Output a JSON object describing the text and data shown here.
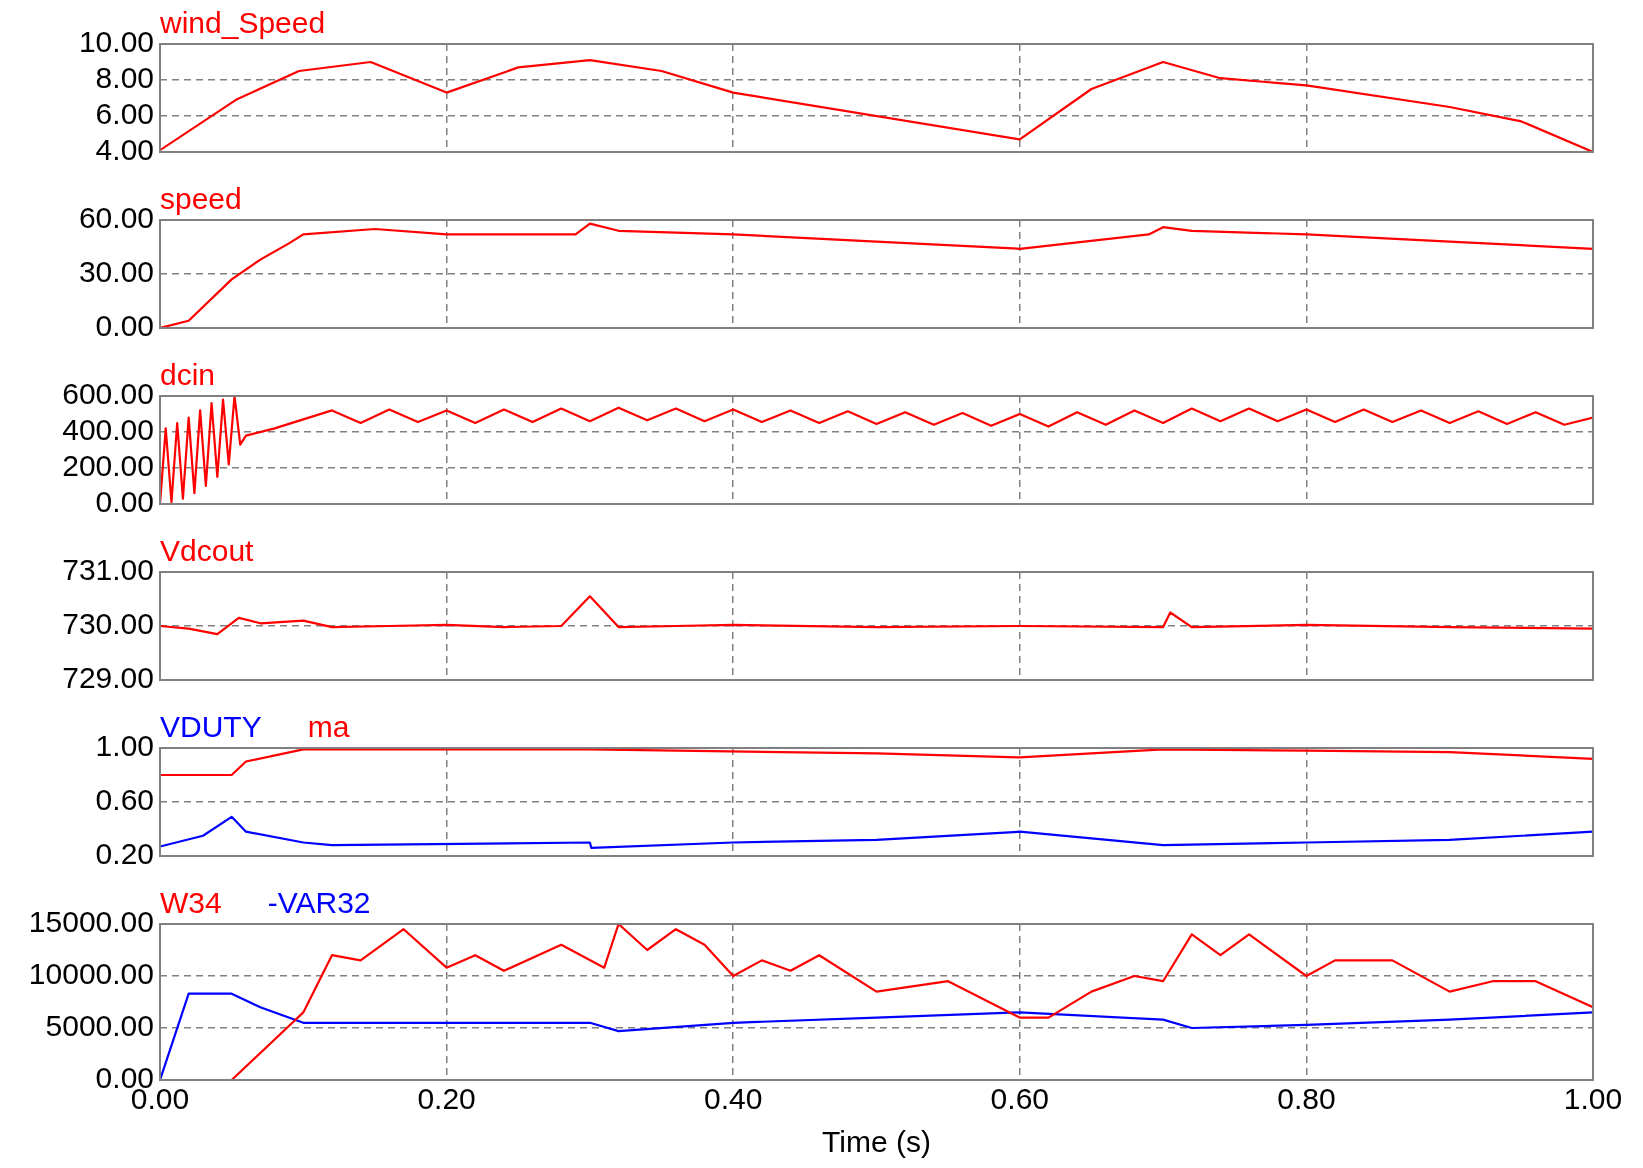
{
  "chart_data": [
    {
      "type": "line",
      "x": [
        0,
        0.053,
        0.097,
        0.147,
        0.2,
        0.25,
        0.3,
        0.35,
        0.4,
        0.6,
        0.65,
        0.7,
        0.74,
        0.8,
        0.9,
        0.95,
        1.0
      ],
      "series": [
        {
          "name": "wind_Speed",
          "color": "#ff0000",
          "values": [
            4.1,
            6.9,
            8.5,
            9.0,
            7.3,
            8.7,
            9.1,
            8.5,
            7.3,
            4.7,
            7.5,
            9.0,
            8.1,
            7.7,
            6.5,
            5.7,
            4.0
          ]
        }
      ],
      "xlim": [
        0,
        1
      ],
      "xticks": [
        0,
        0.2,
        0.4,
        0.6,
        0.8,
        1
      ],
      "ylim": [
        4,
        10
      ],
      "yticks": [
        {
          "value": 4,
          "label": "4.00"
        },
        {
          "value": 6,
          "label": "6.00"
        },
        {
          "value": 8,
          "label": "8.00"
        },
        {
          "value": 10,
          "label": "10.00"
        }
      ],
      "tick_labels": "y",
      "grid": true,
      "legend": "top left",
      "marker": "none",
      "line_style": "solid"
    },
    {
      "type": "line",
      "x": [
        0,
        0.02,
        0.05,
        0.07,
        0.09,
        0.1,
        0.15,
        0.2,
        0.29,
        0.3,
        0.32,
        0.4,
        0.5,
        0.6,
        0.69,
        0.7,
        0.72,
        0.8,
        0.9,
        1.0
      ],
      "series": [
        {
          "name": "speed",
          "color": "#ff0000",
          "values": [
            0,
            4,
            27,
            38,
            47,
            52,
            55,
            52,
            52,
            58,
            54,
            52,
            48,
            44,
            52,
            56,
            54,
            52,
            48,
            44
          ]
        }
      ],
      "xlim": [
        0,
        1
      ],
      "xticks": [
        0,
        0.2,
        0.4,
        0.6,
        0.8,
        1
      ],
      "ylim": [
        0,
        60
      ],
      "yticks": [
        {
          "value": 0,
          "label": "0.00"
        },
        {
          "value": 30,
          "label": "30.00"
        },
        {
          "value": 60,
          "label": "60.00"
        }
      ],
      "tick_labels": "y",
      "grid": true,
      "legend": "top left",
      "marker": "none",
      "line_style": "solid"
    },
    {
      "type": "line",
      "x": [
        0,
        0.004,
        0.008,
        0.012,
        0.016,
        0.02,
        0.024,
        0.028,
        0.032,
        0.036,
        0.04,
        0.044,
        0.048,
        0.052,
        0.056,
        0.06,
        0.08,
        0.1,
        0.12,
        0.14,
        0.16,
        0.18,
        0.2,
        0.22,
        0.24,
        0.26,
        0.28,
        0.3,
        0.32,
        0.34,
        0.36,
        0.38,
        0.4,
        0.42,
        0.44,
        0.46,
        0.48,
        0.5,
        0.52,
        0.54,
        0.56,
        0.58,
        0.6,
        0.62,
        0.64,
        0.66,
        0.68,
        0.7,
        0.72,
        0.74,
        0.76,
        0.78,
        0.8,
        0.82,
        0.84,
        0.86,
        0.88,
        0.9,
        0.92,
        0.94,
        0.96,
        0.98,
        1.0
      ],
      "series": [
        {
          "name": "dcin",
          "color": "#ff0000",
          "values": [
            0,
            420,
            10,
            450,
            30,
            480,
            60,
            520,
            100,
            560,
            150,
            580,
            220,
            600,
            330,
            380,
            420,
            470,
            520,
            450,
            525,
            455,
            520,
            450,
            525,
            455,
            530,
            460,
            535,
            465,
            530,
            460,
            525,
            455,
            520,
            450,
            515,
            445,
            510,
            440,
            505,
            435,
            500,
            430,
            510,
            440,
            520,
            450,
            530,
            460,
            530,
            460,
            525,
            455,
            525,
            455,
            520,
            450,
            515,
            445,
            510,
            440,
            480
          ]
        }
      ],
      "xlim": [
        0,
        1
      ],
      "xticks": [
        0,
        0.2,
        0.4,
        0.6,
        0.8,
        1
      ],
      "ylim": [
        0,
        600
      ],
      "yticks": [
        {
          "value": 0,
          "label": "0.00"
        },
        {
          "value": 200,
          "label": "200.00"
        },
        {
          "value": 400,
          "label": "400.00"
        },
        {
          "value": 600,
          "label": "600.00"
        }
      ],
      "tick_labels": "y",
      "grid": true,
      "legend": "top left",
      "marker": "none",
      "line_style": "solid"
    },
    {
      "type": "line",
      "x": [
        0,
        0.02,
        0.04,
        0.055,
        0.07,
        0.1,
        0.12,
        0.16,
        0.2,
        0.24,
        0.28,
        0.3,
        0.32,
        0.36,
        0.4,
        0.5,
        0.6,
        0.7,
        0.705,
        0.72,
        0.8,
        0.9,
        1.0
      ],
      "series": [
        {
          "name": "Vdcout",
          "color": "#ff0000",
          "values": [
            730,
            729.95,
            729.85,
            730.15,
            730.05,
            730.1,
            729.98,
            730,
            730.02,
            729.98,
            730,
            730.55,
            729.98,
            730,
            730.02,
            729.98,
            730,
            729.98,
            730.25,
            729.98,
            730.02,
            729.98,
            729.95
          ]
        }
      ],
      "xlim": [
        0,
        1
      ],
      "xticks": [
        0,
        0.2,
        0.4,
        0.6,
        0.8,
        1
      ],
      "ylim": [
        729,
        731
      ],
      "yticks": [
        {
          "value": 729,
          "label": "729.00"
        },
        {
          "value": 730,
          "label": "730.00"
        },
        {
          "value": 731,
          "label": "731.00"
        }
      ],
      "tick_labels": "y",
      "grid": true,
      "legend": "top left",
      "marker": "none",
      "line_style": "solid"
    },
    {
      "type": "line",
      "series": [
        {
          "name": "VDUTY",
          "color": "#0000ff",
          "x": [
            0,
            0.03,
            0.05,
            0.06,
            0.1,
            0.12,
            0.3,
            0.301,
            0.4,
            0.5,
            0.6,
            0.7,
            0.8,
            0.9,
            1.0
          ],
          "values": [
            0.27,
            0.35,
            0.49,
            0.38,
            0.3,
            0.28,
            0.3,
            0.26,
            0.3,
            0.32,
            0.38,
            0.28,
            0.3,
            0.32,
            0.38
          ]
        },
        {
          "name": "ma",
          "color": "#ff0000",
          "x": [
            0,
            0.05,
            0.06,
            0.1,
            0.3,
            0.5,
            0.6,
            0.7,
            0.8,
            0.9,
            1.0
          ],
          "values": [
            0.8,
            0.8,
            0.9,
            0.99,
            0.99,
            0.96,
            0.93,
            0.99,
            0.98,
            0.97,
            0.92
          ]
        }
      ],
      "xlim": [
        0,
        1
      ],
      "xticks": [
        0,
        0.2,
        0.4,
        0.6,
        0.8,
        1
      ],
      "ylim": [
        0.2,
        1
      ],
      "yticks": [
        {
          "value": 0.2,
          "label": "0.20"
        },
        {
          "value": 0.6,
          "label": "0.60"
        },
        {
          "value": 1,
          "label": "1.00"
        }
      ],
      "tick_labels": "y",
      "grid": true,
      "legend": "top left",
      "marker": "none",
      "line_style": "solid"
    },
    {
      "type": "line",
      "xlabel": "Time (s)",
      "series": [
        {
          "name": "W34",
          "color": "#ff0000",
          "x": [
            0.05,
            0.1,
            0.12,
            0.14,
            0.17,
            0.2,
            0.22,
            0.24,
            0.28,
            0.31,
            0.32,
            0.34,
            0.36,
            0.38,
            0.4,
            0.42,
            0.44,
            0.46,
            0.5,
            0.55,
            0.6,
            0.62,
            0.65,
            0.68,
            0.7,
            0.72,
            0.74,
            0.76,
            0.8,
            0.82,
            0.86,
            0.9,
            0.93,
            0.96,
            1.0
          ],
          "values": [
            0,
            6500,
            12000,
            11500,
            14500,
            10800,
            12000,
            10500,
            13000,
            10800,
            15000,
            12500,
            14500,
            13000,
            10000,
            11500,
            10500,
            12000,
            8500,
            9500,
            6000,
            6000,
            8500,
            10000,
            9500,
            14000,
            12000,
            14000,
            10000,
            11500,
            11500,
            8500,
            9500,
            9500,
            7000
          ]
        },
        {
          "name": "-VAR32",
          "color": "#0000ff",
          "x": [
            0,
            0.02,
            0.05,
            0.07,
            0.1,
            0.2,
            0.3,
            0.32,
            0.4,
            0.5,
            0.6,
            0.7,
            0.72,
            0.8,
            0.9,
            1.0
          ],
          "values": [
            0,
            8300,
            8300,
            7000,
            5500,
            5500,
            5500,
            4700,
            5500,
            6000,
            6500,
            5800,
            5000,
            5300,
            5800,
            6500
          ]
        }
      ],
      "xlim": [
        0,
        1
      ],
      "xticks": [
        {
          "value": 0,
          "label": "0.00"
        },
        {
          "value": 0.2,
          "label": "0.20"
        },
        {
          "value": 0.4,
          "label": "0.40"
        },
        {
          "value": 0.6,
          "label": "0.60"
        },
        {
          "value": 0.8,
          "label": "0.80"
        },
        {
          "value": 1,
          "label": "1.00"
        }
      ],
      "ylim": [
        0,
        15000
      ],
      "yticks": [
        {
          "value": 0,
          "label": "0.00"
        },
        {
          "value": 5000,
          "label": "5000.00"
        },
        {
          "value": 10000,
          "label": "10000.00"
        },
        {
          "value": 15000,
          "label": "15000.00"
        }
      ],
      "grid": true,
      "legend": "top left",
      "marker": "none",
      "line_style": "solid"
    }
  ]
}
